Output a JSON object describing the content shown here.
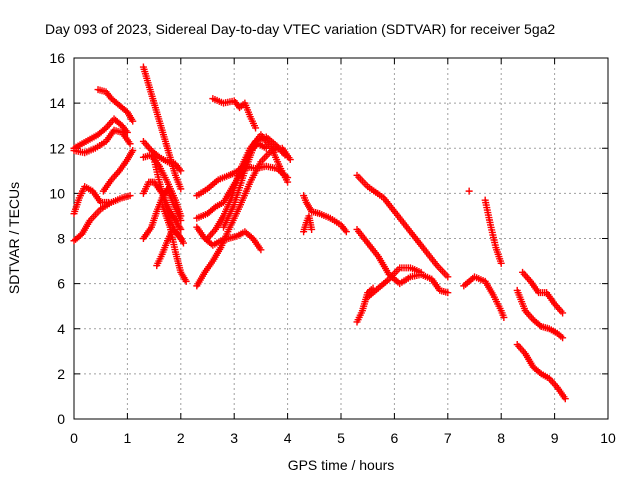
{
  "chart_data": {
    "type": "scatter",
    "title": "Day 093 of 2023, Sidereal Day-to-day VTEC variation (SDTVAR) for receiver 5ga2",
    "xlabel": "GPS time / hours",
    "ylabel": "SDTVAR / TECUs",
    "xlim": [
      0,
      10
    ],
    "ylim": [
      0,
      16
    ],
    "xticks": [
      "0",
      "1",
      "2",
      "3",
      "4",
      "5",
      "6",
      "7",
      "8",
      "9",
      "10"
    ],
    "yticks": [
      "0",
      "2",
      "4",
      "6",
      "8",
      "10",
      "12",
      "14",
      "16"
    ],
    "grid": true,
    "marker": "+",
    "marker_color": "#ff0000",
    "series": [
      {
        "x": [
          0.0,
          0.15,
          0.3,
          0.45,
          0.6,
          0.75,
          0.9,
          1.0
        ],
        "y": [
          12.0,
          12.2,
          12.4,
          12.6,
          12.9,
          13.3,
          13.0,
          12.7
        ]
      },
      {
        "x": [
          0.0,
          0.2,
          0.4,
          0.6,
          0.75,
          0.9,
          1.05
        ],
        "y": [
          11.9,
          11.8,
          12.0,
          12.3,
          12.8,
          12.7,
          12.2
        ]
      },
      {
        "x": [
          0.0,
          0.1,
          0.2,
          0.35,
          0.5,
          0.65
        ],
        "y": [
          9.1,
          9.8,
          10.3,
          10.1,
          9.6,
          9.6
        ]
      },
      {
        "x": [
          0.0,
          0.15,
          0.3,
          0.5,
          0.7,
          0.9,
          1.05
        ],
        "y": [
          7.9,
          8.2,
          8.8,
          9.3,
          9.6,
          9.8,
          9.9
        ]
      },
      {
        "x": [
          0.45,
          0.6,
          0.7,
          0.85,
          1.0,
          1.1
        ],
        "y": [
          14.6,
          14.5,
          14.2,
          13.9,
          13.6,
          13.2
        ]
      },
      {
        "x": [
          0.55,
          0.7,
          0.85,
          1.0,
          1.1
        ],
        "y": [
          10.1,
          10.6,
          11.0,
          11.5,
          11.9
        ]
      },
      {
        "x": [
          1.3,
          1.4,
          1.5,
          1.6,
          1.7,
          1.8,
          1.9,
          2.0
        ],
        "y": [
          15.6,
          14.8,
          14.0,
          13.2,
          12.4,
          11.6,
          10.8,
          10.2
        ]
      },
      {
        "x": [
          1.3,
          1.45,
          1.6,
          1.75,
          1.9,
          2.0
        ],
        "y": [
          12.3,
          11.9,
          11.6,
          11.4,
          11.3,
          11.0
        ]
      },
      {
        "x": [
          1.3,
          1.45,
          1.6,
          1.75,
          1.9,
          2.0
        ],
        "y": [
          11.6,
          11.7,
          11.2,
          10.5,
          9.7,
          9.0
        ]
      },
      {
        "x": [
          1.3,
          1.4,
          1.5,
          1.65,
          1.8,
          1.95,
          2.0
        ],
        "y": [
          10.0,
          10.5,
          10.5,
          10.0,
          9.2,
          8.6,
          8.4
        ]
      },
      {
        "x": [
          1.3,
          1.45,
          1.55,
          1.65,
          1.75,
          1.85,
          2.0
        ],
        "y": [
          8.0,
          8.5,
          9.2,
          9.8,
          10.2,
          9.6,
          8.8
        ]
      },
      {
        "x": [
          1.55,
          1.65,
          1.75,
          1.85,
          1.95,
          2.05
        ],
        "y": [
          6.8,
          7.3,
          7.9,
          8.4,
          8.2,
          7.8
        ]
      },
      {
        "x": [
          1.65,
          1.8,
          1.9,
          2.0,
          2.1
        ],
        "y": [
          9.5,
          8.5,
          7.4,
          6.5,
          6.1
        ]
      },
      {
        "x": [
          1.5,
          1.6,
          1.7,
          1.8,
          1.9,
          2.0
        ],
        "y": [
          11.5,
          10.5,
          9.6,
          8.8,
          8.3,
          8.0
        ]
      },
      {
        "x": [
          2.6,
          2.8,
          3.0,
          3.1,
          3.2,
          3.3,
          3.4
        ],
        "y": [
          14.2,
          14.0,
          14.1,
          13.8,
          14.0,
          13.4,
          12.9
        ]
      },
      {
        "x": [
          2.3,
          2.5,
          2.7,
          2.9,
          3.0,
          3.2,
          3.4,
          3.6,
          3.8,
          4.0
        ],
        "y": [
          9.9,
          10.2,
          10.6,
          10.8,
          10.9,
          11.2,
          11.1,
          11.2,
          11.1,
          10.7
        ]
      },
      {
        "x": [
          2.3,
          2.45,
          2.6,
          2.75,
          2.9,
          3.05,
          3.2,
          3.35,
          3.5
        ],
        "y": [
          8.5,
          8.0,
          7.7,
          7.9,
          8.0,
          8.1,
          8.3,
          8.0,
          7.5
        ]
      },
      {
        "x": [
          2.3,
          2.5,
          2.65,
          2.8,
          3.0,
          3.15,
          3.3,
          3.45,
          3.6
        ],
        "y": [
          8.9,
          9.1,
          9.4,
          9.6,
          10.4,
          11.0,
          11.9,
          12.2,
          12.0
        ]
      },
      {
        "x": [
          2.3,
          2.45,
          2.6,
          2.75,
          2.9,
          3.1,
          3.3,
          3.5,
          3.7,
          3.9,
          4.05
        ],
        "y": [
          5.9,
          6.5,
          7.0,
          7.6,
          8.4,
          9.4,
          10.5,
          11.4,
          11.9,
          12.0,
          11.5
        ]
      },
      {
        "x": [
          2.5,
          2.65,
          2.8,
          2.95,
          3.1,
          3.3,
          3.5,
          3.7,
          3.85,
          4.0
        ],
        "y": [
          8.0,
          8.4,
          9.0,
          9.8,
          11.0,
          12.0,
          12.6,
          12.0,
          11.2,
          10.5
        ]
      },
      {
        "x": [
          2.8,
          3.0,
          3.2,
          3.4,
          3.6,
          3.8,
          3.95
        ],
        "y": [
          8.5,
          9.5,
          11.0,
          12.3,
          12.5,
          12.1,
          11.7
        ]
      },
      {
        "x": [
          4.3,
          4.35,
          4.45,
          4.6,
          4.8,
          5.0,
          5.1
        ],
        "y": [
          9.9,
          9.6,
          9.2,
          9.1,
          8.9,
          8.6,
          8.3
        ]
      },
      {
        "x": [
          4.3,
          4.35,
          4.4,
          4.45
        ],
        "y": [
          8.3,
          8.7,
          9.0,
          8.4
        ]
      },
      {
        "x": [
          5.3,
          5.5,
          5.8,
          6.0,
          6.2,
          6.4,
          6.6,
          6.8,
          7.0
        ],
        "y": [
          10.8,
          10.3,
          9.8,
          9.2,
          8.6,
          8.0,
          7.4,
          6.8,
          6.3
        ]
      },
      {
        "x": [
          5.3,
          5.5,
          5.7,
          5.9,
          6.1,
          6.3,
          6.5,
          6.7,
          6.85,
          7.0
        ],
        "y": [
          8.4,
          7.8,
          7.2,
          6.4,
          6.0,
          6.3,
          6.4,
          6.2,
          5.7,
          5.6
        ]
      },
      {
        "x": [
          5.3,
          5.4,
          5.5,
          5.6
        ],
        "y": [
          4.3,
          4.8,
          5.6,
          5.8
        ]
      },
      {
        "x": [
          5.5,
          5.7,
          5.9,
          6.1,
          6.3,
          6.5
        ],
        "y": [
          5.4,
          5.8,
          6.2,
          6.7,
          6.7,
          6.5
        ]
      },
      {
        "x": [
          7.4
        ],
        "y": [
          10.1
        ]
      },
      {
        "x": [
          7.7,
          7.8,
          7.9,
          8.0
        ],
        "y": [
          9.7,
          8.6,
          7.6,
          6.9
        ]
      },
      {
        "x": [
          7.3,
          7.5,
          7.7,
          7.85,
          8.0,
          8.05
        ],
        "y": [
          5.9,
          6.3,
          6.1,
          5.5,
          4.8,
          4.5
        ]
      },
      {
        "x": [
          8.4,
          8.55,
          8.7,
          8.85,
          9.0,
          9.15
        ],
        "y": [
          6.5,
          6.1,
          5.6,
          5.6,
          5.1,
          4.7
        ]
      },
      {
        "x": [
          8.3,
          8.45,
          8.6,
          8.75,
          8.9,
          9.05,
          9.15
        ],
        "y": [
          5.7,
          4.8,
          4.4,
          4.1,
          4.0,
          3.8,
          3.6
        ]
      },
      {
        "x": [
          8.3,
          8.45,
          8.6,
          8.75,
          8.9,
          9.05,
          9.2
        ],
        "y": [
          3.3,
          2.9,
          2.3,
          2.0,
          1.8,
          1.4,
          0.9
        ]
      }
    ]
  }
}
